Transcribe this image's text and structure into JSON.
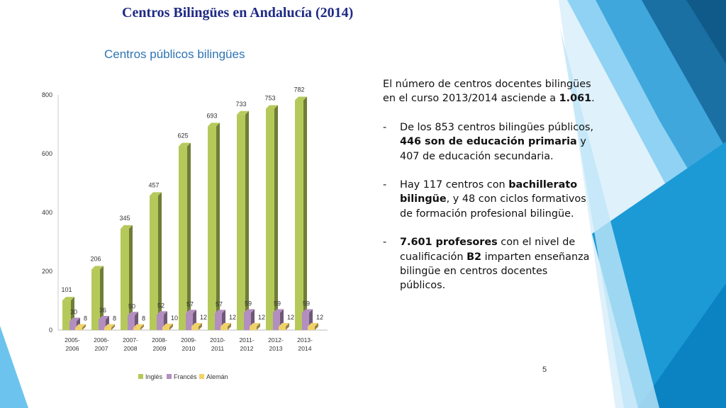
{
  "slide": {
    "title": "Centros Bilingües en Andalucía (2014)",
    "subtitle": "Centros  públicos bilingües",
    "page_number": "5"
  },
  "text": {
    "intro_a": "El número de centros docentes bilingües en el curso 2013/2014 asciende a ",
    "intro_b": "1.061",
    "intro_c": ".",
    "bullet_marker": "-",
    "b1_a": "De los 853 centros bilingües públicos, ",
    "b1_b": "446 son de educación primaria",
    "b1_c": " y 407 de educación secundaria.",
    "b2_a": "Hay 117 centros con ",
    "b2_b": "bachillerato bilingüe",
    "b2_c": ", y 48 con ciclos formativos de formación profesional bilingüe.",
    "b3_a": "7.601 profesores",
    "b3_b": " con el nivel de cualificación ",
    "b3_c": "B2",
    "b3_d": " imparten enseñanza bilingüe en centros docentes públicos."
  },
  "colors": {
    "ingles": "#b5c95a",
    "frances": "#b38ec0",
    "aleman": "#f0d26a",
    "title": "#1f2a86",
    "subtitle": "#2e74b5"
  },
  "chart_data": {
    "type": "bar",
    "title": "",
    "xlabel": "",
    "ylabel": "",
    "ylim": [
      0,
      800
    ],
    "yticks": [
      "0",
      "200",
      "400",
      "600",
      "800"
    ],
    "categories": [
      [
        "2005-",
        "2006"
      ],
      [
        "2006-",
        "2007"
      ],
      [
        "2007-",
        "2008"
      ],
      [
        "2008-",
        "2009"
      ],
      [
        "2009-",
        "2010"
      ],
      [
        "2010-",
        "2011"
      ],
      [
        "2011-",
        "2012"
      ],
      [
        "2012-",
        "2013"
      ],
      [
        "2013-",
        "2014"
      ]
    ],
    "series": [
      {
        "name": "Inglés",
        "values": [
          101,
          206,
          345,
          457,
          625,
          693,
          733,
          753,
          782
        ],
        "labels": [
          "101",
          "206",
          "345",
          "457",
          "625",
          "693",
          "733",
          "753",
          "782"
        ]
      },
      {
        "name": "Francés",
        "values": [
          30,
          36,
          50,
          52,
          57,
          57,
          59,
          59,
          59
        ],
        "labels": [
          "30",
          "36",
          "50",
          "52",
          "57",
          "57",
          "59",
          "59",
          "59"
        ]
      },
      {
        "name": "Alemán",
        "values": [
          8,
          8,
          8,
          10,
          12,
          12,
          12,
          12,
          12
        ],
        "labels": [
          "8",
          "8",
          "8",
          "10",
          "12",
          "12",
          "12",
          "12",
          "12"
        ]
      }
    ],
    "legend_position": "bottom"
  }
}
